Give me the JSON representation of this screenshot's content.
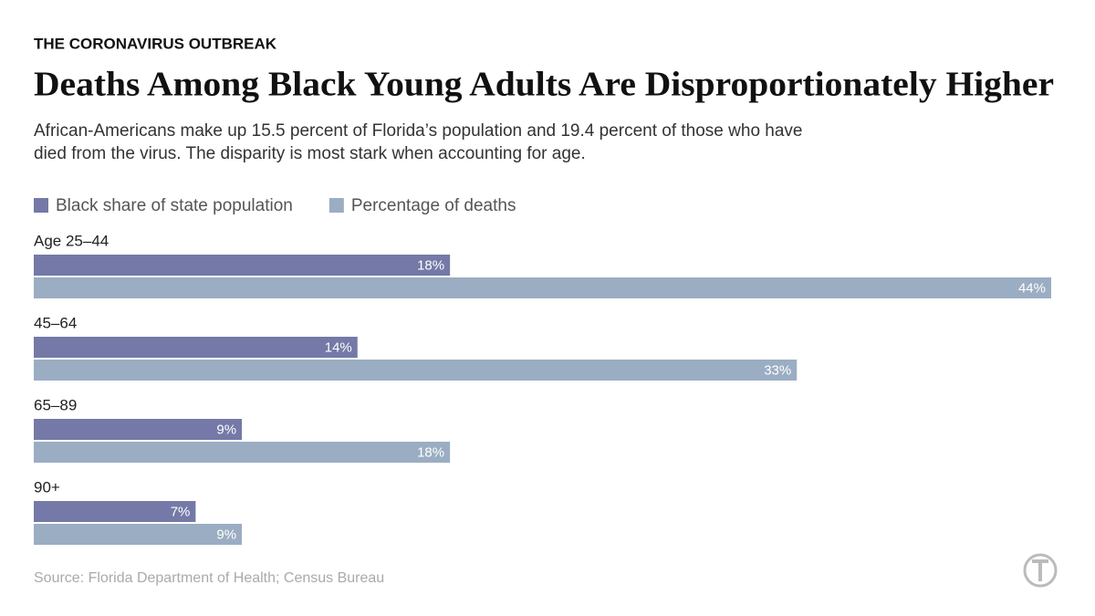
{
  "chart_data": {
    "type": "bar",
    "orientation": "horizontal",
    "kicker": "THE CORONAVIRUS OUTBREAK",
    "title": "Deaths Among Black Young Adults Are Disproportionately Higher",
    "subtitle": "African-Americans make up 15.5 percent of Florida’s population and 19.4 percent of those who have died from the virus. The disparity is most stark when accounting for age.",
    "categories": [
      "Age 25–44",
      "45–64",
      "65–89",
      "90+"
    ],
    "series": [
      {
        "name": "Black share of state population",
        "color": "#7479a7",
        "values": [
          18,
          14,
          9,
          7
        ],
        "value_labels": [
          "18%",
          "14%",
          "9%",
          "7%"
        ]
      },
      {
        "name": "Percentage of deaths",
        "color": "#9badc2",
        "values": [
          44,
          33,
          18,
          9
        ],
        "value_labels": [
          "44%",
          "33%",
          "18%",
          "9%"
        ]
      }
    ],
    "source": "Source: Florida Department of Health; Census Bureau"
  }
}
